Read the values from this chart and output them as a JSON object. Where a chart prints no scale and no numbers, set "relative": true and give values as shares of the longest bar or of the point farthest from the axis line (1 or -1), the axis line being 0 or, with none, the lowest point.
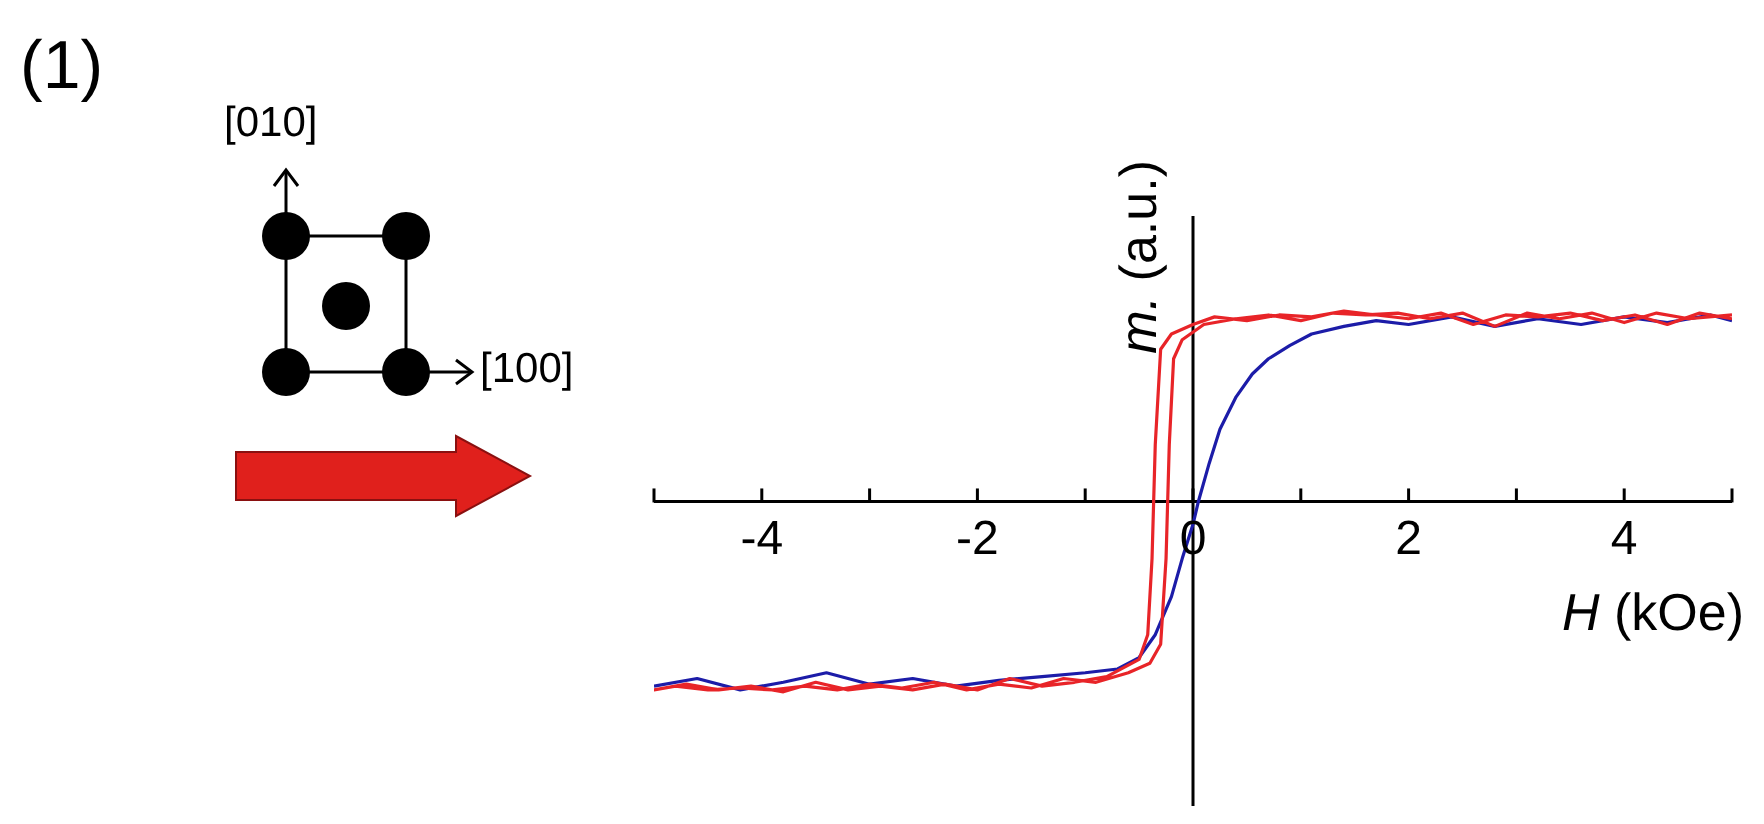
{
  "chart_data": {
    "type": "line",
    "relative": true,
    "xlabel": "H (kOe)",
    "ylabel": "m. (a.u.)",
    "annotations": [
      "(1)",
      "[010]",
      "[100]"
    ],
    "xlim": [
      -5,
      5
    ],
    "xticks": [
      {
        "value": -5,
        "label": null
      },
      -4,
      {
        "value": -3,
        "label": null
      },
      -2,
      {
        "value": -1,
        "label": null
      },
      0,
      {
        "value": 1,
        "label": null
      },
      2,
      {
        "value": 3,
        "label": null
      },
      4,
      {
        "value": 5,
        "label": null
      }
    ],
    "line_style": "solid",
    "series": [
      {
        "color": "#1c1ca8",
        "x": [
          -5,
          -4.6,
          -4.2,
          -3.8,
          -3.4,
          -3.0,
          -2.6,
          -2.2,
          -1.8,
          -1.4,
          -1.0,
          -0.7,
          -0.5,
          -0.35,
          -0.2,
          -0.1,
          0,
          0.05,
          0.15,
          0.25,
          0.4,
          0.55,
          0.7,
          0.9,
          1.1,
          1.4,
          1.7,
          2.0,
          2.4,
          2.8,
          3.2,
          3.6,
          4.0,
          4.4,
          4.8,
          5
        ],
        "values": [
          -0.97,
          -0.93,
          -0.99,
          -0.95,
          -0.9,
          -0.96,
          -0.93,
          -0.97,
          -0.94,
          -0.92,
          -0.9,
          -0.88,
          -0.82,
          -0.7,
          -0.5,
          -0.3,
          -0.12,
          0,
          0.2,
          0.38,
          0.55,
          0.67,
          0.75,
          0.82,
          0.88,
          0.92,
          0.95,
          0.93,
          0.97,
          0.92,
          0.96,
          0.93,
          0.97,
          0.94,
          0.98,
          0.95
        ]
      },
      {
        "color": "#e82428",
        "x": [
          5,
          4.7,
          4.4,
          4.1,
          3.8,
          3.5,
          3.2,
          2.9,
          2.6,
          2.3,
          2.0,
          1.7,
          1.4,
          1.1,
          0.8,
          0.5,
          0.2,
          0,
          -0.2,
          -0.3,
          -0.35,
          -0.38,
          -0.42,
          -0.5,
          -0.8,
          -1.1,
          -1.4,
          -1.7,
          -2.0,
          -2.3,
          -2.6,
          -2.9,
          -3.2,
          -3.5,
          -3.8,
          -4.1,
          -4.4,
          -4.7,
          -5,
          -4.8,
          -4.5,
          -4.2,
          -3.9,
          -3.6,
          -3.3,
          -3.0,
          -2.7,
          -2.4,
          -2.1,
          -1.8,
          -1.5,
          -1.2,
          -0.9,
          -0.6,
          -0.4,
          -0.3,
          -0.25,
          -0.22,
          -0.18,
          -0.1,
          0.1,
          0.4,
          0.7,
          1.0,
          1.3,
          1.6,
          1.9,
          2.2,
          2.5,
          2.8,
          3.1,
          3.4,
          3.7,
          4.0,
          4.3,
          4.6,
          5
        ],
        "values": [
          0.96,
          0.99,
          0.93,
          0.98,
          0.95,
          0.99,
          0.97,
          0.98,
          0.93,
          0.99,
          0.96,
          0.98,
          1,
          0.97,
          0.98,
          0.95,
          0.97,
          0.93,
          0.88,
          0.8,
          0.3,
          -0.3,
          -0.7,
          -0.83,
          -0.92,
          -0.95,
          -0.97,
          -0.93,
          -0.99,
          -0.96,
          -0.99,
          -0.97,
          -0.99,
          -0.95,
          -1,
          -0.97,
          -0.99,
          -0.96,
          -0.99,
          -0.97,
          -0.99,
          -0.98,
          -0.99,
          -0.97,
          -0.99,
          -0.96,
          -0.98,
          -0.95,
          -0.99,
          -0.96,
          -0.98,
          -0.93,
          -0.95,
          -0.9,
          -0.85,
          -0.75,
          -0.3,
          0.3,
          0.75,
          0.85,
          0.93,
          0.96,
          0.98,
          0.95,
          0.99,
          0.98,
          0.99,
          0.96,
          0.99,
          0.92,
          0.99,
          0.96,
          0.99,
          0.94,
          0.99,
          0.96,
          0.98
        ]
      }
    ]
  }
}
